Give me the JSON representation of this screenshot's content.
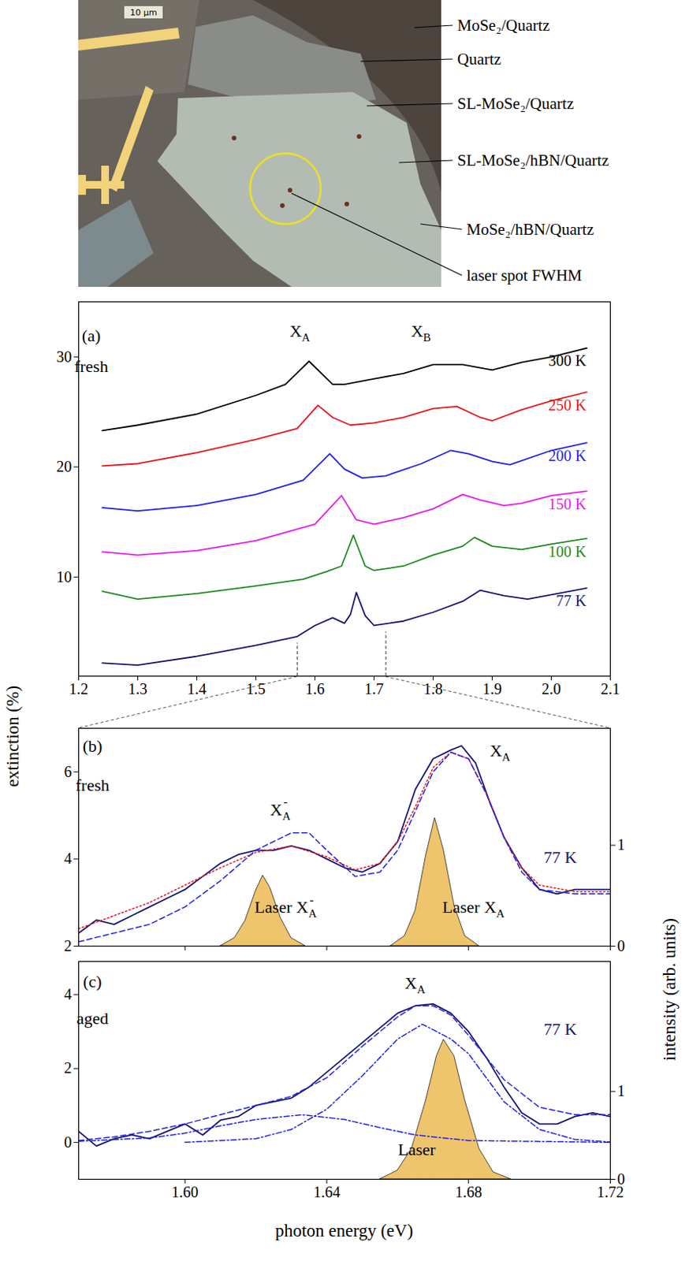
{
  "image": {
    "scale_bar": "10 µm",
    "labels": [
      "MoSe₂/Quartz",
      "Quartz",
      "SL-MoSe₂/Quartz",
      "SL-MoSe₂/hBN/Quartz",
      "MoSe₂/hBN/Quartz",
      "laser spot FWHM"
    ]
  },
  "axis_titles": {
    "x": "photon energy (eV)",
    "y": "extinction (%)",
    "y2": "intensity (arb. units)"
  },
  "chart_data": [
    {
      "type": "line",
      "xlim": [
        1.2,
        2.1
      ],
      "xticks": [
        1.2,
        1.3,
        1.4,
        1.5,
        1.6,
        1.7,
        1.8,
        1.9,
        {
          "value": 2,
          "label": "2.0"
        },
        2.1
      ],
      "ylim": [
        1,
        35
      ],
      "yticks": [
        10,
        20,
        30
      ],
      "grid": false,
      "annotations": [
        {
          "text": "(a)",
          "x": 1.222,
          "y": 31.4
        },
        {
          "text": "fresh",
          "x": 1.222,
          "y": 28.6
        },
        {
          "text": "X",
          "sub": "A",
          "x": 1.575,
          "y": 31.8
        },
        {
          "text": "X",
          "sub": "B",
          "x": 1.78,
          "y": 31.8
        }
      ],
      "series": [
        {
          "name": "300 K",
          "color": "#000000",
          "x": [
            1.24,
            1.3,
            1.4,
            1.5,
            1.55,
            1.59,
            1.63,
            1.65,
            1.7,
            1.75,
            1.8,
            1.85,
            1.9,
            1.95,
            2.0,
            2.06
          ],
          "values": [
            23.3,
            23.8,
            24.8,
            26.5,
            27.5,
            29.6,
            27.5,
            27.5,
            28.0,
            28.5,
            29.3,
            29.3,
            28.8,
            29.5,
            30.0,
            30.8
          ]
        },
        {
          "name": "250 K",
          "color": "#e8141c",
          "x": [
            1.24,
            1.3,
            1.4,
            1.5,
            1.57,
            1.605,
            1.63,
            1.66,
            1.7,
            1.75,
            1.8,
            1.84,
            1.88,
            1.9,
            1.95,
            2.0,
            2.06
          ],
          "values": [
            20.1,
            20.3,
            21.3,
            22.5,
            23.5,
            25.6,
            24.5,
            23.8,
            24.0,
            24.5,
            25.3,
            25.5,
            24.5,
            24.2,
            25.2,
            26.0,
            26.8
          ]
        },
        {
          "name": "200 K",
          "color": "#1f1fe6",
          "x": [
            1.24,
            1.3,
            1.4,
            1.5,
            1.58,
            1.625,
            1.65,
            1.68,
            1.72,
            1.78,
            1.83,
            1.86,
            1.9,
            1.93,
            2.0,
            2.06
          ],
          "values": [
            16.3,
            16.0,
            16.5,
            17.5,
            18.8,
            21.2,
            19.8,
            19.0,
            19.2,
            20.3,
            21.5,
            21.2,
            20.5,
            20.2,
            21.5,
            22.2
          ]
        },
        {
          "name": "150 K",
          "color": "#e619e6",
          "x": [
            1.24,
            1.3,
            1.4,
            1.5,
            1.6,
            1.645,
            1.67,
            1.7,
            1.75,
            1.8,
            1.85,
            1.88,
            1.92,
            1.95,
            2.0,
            2.06
          ],
          "values": [
            12.3,
            12.0,
            12.4,
            13.3,
            14.8,
            17.4,
            15.2,
            14.8,
            15.4,
            16.2,
            17.5,
            17.0,
            16.5,
            16.7,
            17.4,
            17.8
          ]
        },
        {
          "name": "100 K",
          "color": "#1a8a1a",
          "x": [
            1.24,
            1.3,
            1.4,
            1.5,
            1.58,
            1.62,
            1.645,
            1.665,
            1.685,
            1.7,
            1.75,
            1.8,
            1.85,
            1.87,
            1.9,
            1.95,
            2.0,
            2.06
          ],
          "values": [
            8.7,
            8.0,
            8.5,
            9.2,
            9.8,
            10.5,
            11.0,
            13.8,
            11.0,
            10.6,
            11.0,
            12.0,
            12.8,
            13.6,
            12.8,
            12.5,
            13.0,
            13.5
          ]
        },
        {
          "name": "77 K",
          "color": "#14146e",
          "x": [
            1.24,
            1.3,
            1.4,
            1.5,
            1.57,
            1.6,
            1.63,
            1.65,
            1.66,
            1.67,
            1.685,
            1.7,
            1.75,
            1.8,
            1.85,
            1.88,
            1.92,
            1.96,
            2.0,
            2.06
          ],
          "values": [
            2.2,
            2.0,
            2.8,
            3.8,
            4.6,
            5.6,
            6.3,
            5.8,
            6.6,
            8.6,
            6.5,
            5.6,
            6.0,
            6.8,
            7.8,
            8.8,
            8.3,
            8.0,
            8.4,
            9.0
          ]
        }
      ]
    },
    {
      "type": "line",
      "xlim": [
        1.57,
        1.72
      ],
      "xticks": [
        {
          "value": 1.6,
          "label": "1.60"
        },
        {
          "value": 1.64,
          "label": "1.64"
        },
        {
          "value": 1.68,
          "label": "1.68"
        },
        {
          "value": 1.72,
          "label": "1.72"
        }
      ],
      "tick_labels": "y",
      "ylim": [
        2,
        7
      ],
      "yticks": [
        2,
        4,
        6
      ],
      "y2lim": [
        0,
        2.16
      ],
      "y2ticks": [
        0,
        1
      ],
      "grid": false,
      "annotations": [
        {
          "text": "(b)",
          "x": 1.574,
          "y": 6.45
        },
        {
          "text": "fresh",
          "x": 1.574,
          "y": 5.55
        },
        {
          "text": "X",
          "sub": "A",
          "sup": "-",
          "x": 1.627,
          "y": 5.0
        },
        {
          "text": "X",
          "sub": "A",
          "x": 1.689,
          "y": 6.35
        },
        {
          "text": "Laser X",
          "sub": "A",
          "sup": "-",
          "x": 1.6285,
          "y": 2.75
        },
        {
          "text": "Laser X",
          "sub": "A",
          "x": 1.6815,
          "y": 2.75
        },
        {
          "text": "77 K",
          "x": 1.706,
          "y": 3.9,
          "color": "#14146e"
        }
      ],
      "series": [
        {
          "color": "#14146e",
          "line_style": "solid",
          "x": [
            1.57,
            1.575,
            1.58,
            1.585,
            1.59,
            1.595,
            1.6,
            1.605,
            1.61,
            1.615,
            1.62,
            1.625,
            1.63,
            1.635,
            1.64,
            1.645,
            1.65,
            1.655,
            1.66,
            1.665,
            1.67,
            1.675,
            1.678,
            1.682,
            1.686,
            1.69,
            1.695,
            1.7,
            1.705,
            1.71,
            1.715,
            1.72
          ],
          "values": [
            2.3,
            2.6,
            2.5,
            2.7,
            2.9,
            3.1,
            3.3,
            3.6,
            3.9,
            4.1,
            4.2,
            4.2,
            4.3,
            4.2,
            4.0,
            3.8,
            3.7,
            3.9,
            4.4,
            5.6,
            6.3,
            6.5,
            6.6,
            6.2,
            5.3,
            4.5,
            3.8,
            3.3,
            3.2,
            3.3,
            3.3,
            3.3
          ]
        },
        {
          "color": "#e8141c",
          "line_style": "dotted",
          "x": [
            1.57,
            1.58,
            1.59,
            1.6,
            1.61,
            1.62,
            1.63,
            1.64,
            1.648,
            1.655,
            1.66,
            1.665,
            1.67,
            1.675,
            1.68,
            1.685,
            1.69,
            1.695,
            1.7,
            1.71,
            1.72
          ],
          "values": [
            2.4,
            2.7,
            3.0,
            3.4,
            3.8,
            4.15,
            4.3,
            4.05,
            3.75,
            3.9,
            4.4,
            5.2,
            6.1,
            6.45,
            6.3,
            5.5,
            4.5,
            3.8,
            3.4,
            3.25,
            3.25
          ]
        },
        {
          "color": "#1f1fe6",
          "line_style": "dashed",
          "x": [
            1.57,
            1.58,
            1.59,
            1.6,
            1.61,
            1.62,
            1.63,
            1.635,
            1.64,
            1.648,
            1.655,
            1.66,
            1.665,
            1.67,
            1.675,
            1.68,
            1.685,
            1.69,
            1.695,
            1.7,
            1.71,
            1.72
          ],
          "values": [
            2.1,
            2.3,
            2.5,
            2.9,
            3.5,
            4.2,
            4.6,
            4.6,
            4.2,
            3.6,
            3.7,
            4.2,
            5.1,
            6.0,
            6.45,
            6.3,
            5.5,
            4.5,
            3.7,
            3.3,
            3.2,
            3.2
          ]
        },
        {
          "type": "area",
          "axis": "y2",
          "color": "#eec46c",
          "x": [
            1.61,
            1.614,
            1.617,
            1.62,
            1.622,
            1.624,
            1.627,
            1.63,
            1.634
          ],
          "values": [
            0,
            0.08,
            0.25,
            0.55,
            0.7,
            0.58,
            0.28,
            0.08,
            0
          ]
        },
        {
          "type": "area",
          "axis": "y2",
          "color": "#eec46c",
          "x": [
            1.658,
            1.662,
            1.665,
            1.668,
            1.6705,
            1.673,
            1.676,
            1.679,
            1.683
          ],
          "values": [
            0,
            0.1,
            0.35,
            0.9,
            1.27,
            0.95,
            0.4,
            0.1,
            0
          ]
        }
      ]
    },
    {
      "type": "line",
      "xlim": [
        1.57,
        1.72
      ],
      "xticks": [
        {
          "value": 1.6,
          "label": "1.60"
        },
        {
          "value": 1.64,
          "label": "1.64"
        },
        {
          "value": 1.68,
          "label": "1.68"
        },
        {
          "value": 1.72,
          "label": "1.72"
        }
      ],
      "ylim": [
        -1,
        4.9
      ],
      "yticks": [
        0,
        2,
        4
      ],
      "y2lim": [
        0,
        2.48
      ],
      "y2ticks": [
        0,
        1
      ],
      "grid": false,
      "annotations": [
        {
          "text": "(c)",
          "x": 1.574,
          "y": 4.2
        },
        {
          "text": "aged",
          "x": 1.574,
          "y": 3.2
        },
        {
          "text": "X",
          "sub": "A",
          "x": 1.665,
          "y": 4.15
        },
        {
          "text": "77 K",
          "x": 1.706,
          "y": 2.9,
          "color": "#14146e"
        },
        {
          "text": "Laser",
          "x": 1.6655,
          "y": -0.35
        }
      ],
      "series": [
        {
          "color": "#14146e",
          "line_style": "solid",
          "x": [
            1.57,
            1.575,
            1.58,
            1.585,
            1.59,
            1.595,
            1.6,
            1.605,
            1.61,
            1.615,
            1.62,
            1.625,
            1.63,
            1.635,
            1.64,
            1.645,
            1.65,
            1.655,
            1.66,
            1.665,
            1.67,
            1.675,
            1.68,
            1.685,
            1.69,
            1.695,
            1.7,
            1.705,
            1.71,
            1.715,
            1.72
          ],
          "values": [
            0.3,
            -0.1,
            0.1,
            0.2,
            0.1,
            0.3,
            0.5,
            0.2,
            0.6,
            0.7,
            1.0,
            1.1,
            1.2,
            1.5,
            1.9,
            2.3,
            2.7,
            3.1,
            3.5,
            3.7,
            3.75,
            3.5,
            3.0,
            2.3,
            1.5,
            0.8,
            0.5,
            0.5,
            0.7,
            0.8,
            0.7
          ]
        },
        {
          "color": "#1f1fe6",
          "line_style": "dashed",
          "x": [
            1.57,
            1.58,
            1.59,
            1.6,
            1.61,
            1.62,
            1.63,
            1.64,
            1.65,
            1.66,
            1.665,
            1.67,
            1.675,
            1.68,
            1.69,
            1.7,
            1.71,
            1.72
          ],
          "values": [
            0.05,
            0.15,
            0.3,
            0.5,
            0.75,
            1.0,
            1.25,
            1.75,
            2.6,
            3.4,
            3.7,
            3.7,
            3.45,
            2.9,
            1.7,
            0.95,
            0.75,
            0.75
          ]
        },
        {
          "color": "#1f1fe6",
          "line_style": "dashdot",
          "x": [
            1.57,
            1.59,
            1.6,
            1.61,
            1.62,
            1.633,
            1.645,
            1.655,
            1.665,
            1.68,
            1.72
          ],
          "values": [
            0.03,
            0.12,
            0.25,
            0.45,
            0.62,
            0.75,
            0.62,
            0.4,
            0.2,
            0.05,
            0
          ]
        },
        {
          "color": "#1f1fe6",
          "line_style": "dashdot",
          "x": [
            1.6,
            1.62,
            1.63,
            1.64,
            1.65,
            1.66,
            1.667,
            1.675,
            1.68,
            1.69,
            1.7,
            1.71,
            1.72
          ],
          "values": [
            0,
            0.1,
            0.35,
            0.9,
            1.8,
            2.8,
            3.2,
            2.8,
            2.4,
            1.1,
            0.35,
            0.08,
            0.01
          ]
        },
        {
          "type": "area",
          "axis": "y2",
          "color": "#eec46c",
          "x": [
            1.655,
            1.66,
            1.664,
            1.668,
            1.671,
            1.673,
            1.676,
            1.679,
            1.683,
            1.687,
            1.692
          ],
          "values": [
            0,
            0.1,
            0.35,
            0.9,
            1.4,
            1.59,
            1.4,
            0.9,
            0.35,
            0.08,
            0
          ]
        }
      ]
    }
  ]
}
